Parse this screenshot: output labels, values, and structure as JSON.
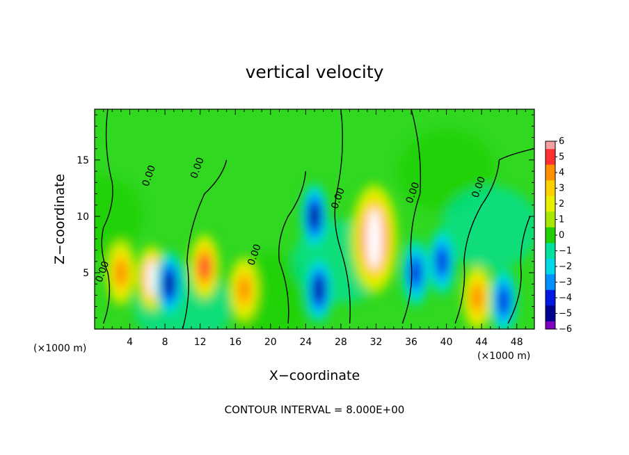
{
  "chart_data": {
    "type": "heatmap",
    "title": "vertical velocity",
    "xlabel": "X−coordinate",
    "ylabel": "Z−coordinate",
    "x_unit": "(×1000 m)",
    "y_unit": "(×1000 m)",
    "xlim": [
      0,
      50
    ],
    "ylim": [
      0,
      19.5
    ],
    "x_ticks": [
      4,
      8,
      12,
      16,
      20,
      24,
      28,
      32,
      36,
      40,
      44,
      48
    ],
    "y_ticks": [
      5,
      10,
      15
    ],
    "colorbar": {
      "ticks": [
        "6",
        "5",
        "4",
        "3",
        "2",
        "1",
        "0",
        "−1",
        "−2",
        "−3",
        "−4",
        "−5",
        "−6"
      ],
      "colors": [
        "#f2a0a0",
        "#ff3030",
        "#ff9000",
        "#ffd000",
        "#e8f000",
        "#a8e800",
        "#20d000",
        "#00e0a0",
        "#00d8e8",
        "#0090ff",
        "#0018e0",
        "#000090",
        "#8000c0"
      ],
      "range": [
        -6,
        6
      ]
    },
    "contour_labels": [
      "0.00",
      "0.00",
      "0.00",
      "0.00",
      "0.00",
      "0.00",
      "0.00"
    ],
    "contour_interval_text": "CONTOUR INTERVAL =  8.000E+00",
    "features": [
      {
        "type": "updraft",
        "x": 6.5,
        "z": 4.5,
        "w": 6
      },
      {
        "type": "updraft",
        "x": 12.5,
        "z": 5.5,
        "w": 5
      },
      {
        "type": "updraft",
        "x": 17,
        "z": 3.5,
        "w": 4
      },
      {
        "type": "updraft",
        "x": 31.8,
        "z": 8,
        "w": 6
      },
      {
        "type": "updraft",
        "x": 43.5,
        "z": 2.8,
        "w": 4
      },
      {
        "type": "updraft",
        "x": 3,
        "z": 5,
        "w": 4
      },
      {
        "type": "downdraft",
        "x": 8.5,
        "z": 4,
        "w": -5
      },
      {
        "type": "downdraft",
        "x": 25,
        "z": 10,
        "w": -5
      },
      {
        "type": "downdraft",
        "x": 25.5,
        "z": 3.5,
        "w": -5
      },
      {
        "type": "downdraft",
        "x": 36.5,
        "z": 5,
        "w": -4
      },
      {
        "type": "downdraft",
        "x": 39.5,
        "z": 6,
        "w": -4
      },
      {
        "type": "downdraft",
        "x": 46.5,
        "z": 2.5,
        "w": -4
      }
    ]
  }
}
